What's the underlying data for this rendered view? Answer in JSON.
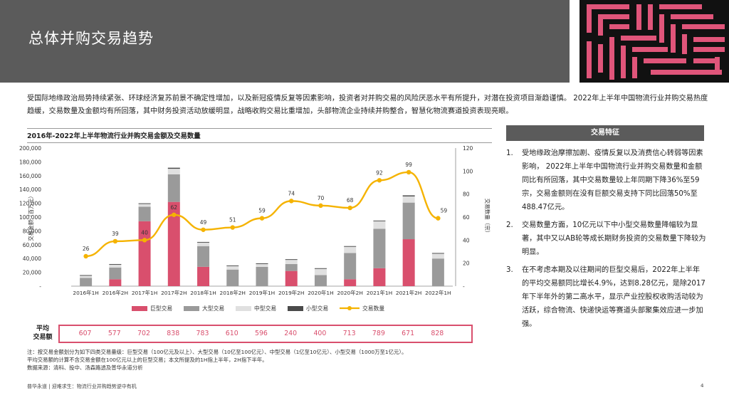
{
  "header": {
    "title": "总体并购交易趋势"
  },
  "intro": "受国际地缘政治局势持续紧张、环球经济复苏前景不确定性增加，以及新冠疫情反复等因素影响，投资者对并购交易的风险厌恶水平有所提升，对潜在投资项目渐趋谨慎。 2022年上半年中国物流行业并购交易热度趋缓，交易数量及金额均有所回落，其中财务投资活动放缓明显，战略收购交易比重增加，头部物流企业持续并购整合，智慧化物流赛道投资表现亮眼。",
  "chart_title": "2016年-2022年上半年物流行业并购交易金额及交易数量",
  "colors": {
    "mega": "#d94f6d",
    "large": "#9a9a9a",
    "mid": "#e0e0e0",
    "small": "#4a4a4a",
    "line": "#f5b301",
    "header_bg": "#5b5b5b"
  },
  "chart_data": {
    "type": "bar",
    "stacked": true,
    "categories": [
      "2016年1H",
      "2016年2H",
      "2017年1H",
      "2017年2H",
      "2018年1H",
      "2018年2H",
      "2019年1H",
      "2019年2H",
      "2020年1H",
      "2020年2H",
      "2021年1H",
      "2021年2H",
      "2022年1H"
    ],
    "ylabel": "交易金额（百万元）",
    "y2label": "交易数量（宗）",
    "ylim": [
      0,
      200000
    ],
    "y2lim": [
      0,
      120
    ],
    "yticks": [
      "200,000",
      "180,000",
      "160,000",
      "140,000",
      "120,000",
      "100,000",
      "80,000",
      "60,000",
      "40,000",
      "20,000",
      "-"
    ],
    "y2ticks": [
      "120",
      "100",
      "80",
      "60",
      "40",
      "20",
      "-"
    ],
    "series": [
      {
        "name": "巨型交易",
        "values": [
          0,
          10000,
          94000,
          122000,
          28000,
          0,
          0,
          22000,
          0,
          10000,
          26000,
          68000,
          0
        ]
      },
      {
        "name": "大型交易",
        "values": [
          12000,
          17000,
          21000,
          40000,
          30000,
          24000,
          28000,
          10000,
          16000,
          38000,
          57000,
          53000,
          40000
        ]
      },
      {
        "name": "中型交易",
        "values": [
          3000,
          4000,
          4000,
          8000,
          5000,
          5000,
          4000,
          6000,
          9000,
          9000,
          11000,
          9000,
          7000
        ]
      },
      {
        "name": "小型交易",
        "values": [
          1000,
          1000,
          1000,
          1500,
          1000,
          1000,
          1000,
          1000,
          1000,
          1000,
          1000,
          1500,
          1000
        ]
      }
    ],
    "line": {
      "name": "交易数量",
      "values": [
        26,
        39,
        40,
        62,
        49,
        51,
        59,
        74,
        70,
        68,
        92,
        99,
        59
      ]
    },
    "legend": "bottom"
  },
  "avg": {
    "label_line1": "平均",
    "label_line2": "交易额",
    "values": [
      "607",
      "577",
      "702",
      "838",
      "783",
      "610",
      "596",
      "240",
      "400",
      "713",
      "789",
      "671",
      "828"
    ]
  },
  "notes": {
    "line1": "注：按交易金额划分为如下四类交易量级：巨型交易（100亿元及以上）、大型交易（10亿至100亿元）、中型交易（1亿至10亿元）、小型交易（1000万至1亿元）。",
    "line2": "平均交易额的计算不含交易金额在100亿元以上的巨型交易；本文所提及的1H指上半年，2H指下半年。",
    "line3": "数据来源：清科、投中、汤森路透及普华永道分析"
  },
  "side": {
    "header": "交易特征",
    "items": [
      {
        "num": "1.",
        "text": "受地缘政治摩擦加剧、疫情反复以及消费信心转弱等因素影响， 2022年上半年中国物流行业并购交易数量和金额同比有所回落，其中交易数量较上年同期下降36%至59宗，交易金额则在没有巨额交易支持下同比回落50%至488.47亿元。"
      },
      {
        "num": "2.",
        "text": "交易数量方面，10亿元以下中小型交易数量降幅较为显著，其中又以AB轮等成长期财务投资的交易数量下降较为明显。"
      },
      {
        "num": "3.",
        "text": "在不考虑本期及以往期间的巨型交易后，2022年上半年的平均交易额同比增长4.9%，达到8.28亿元，是除2017年下半年外的第二高水平，显示产业控股权收购活动较为活跃，综合物流、快递快运等赛道头部聚集效应进一步加强。"
      }
    ]
  },
  "footer": {
    "text": "普华永道 | 迎难求生：物流行业并购趋势逆中有机",
    "page": "4"
  }
}
